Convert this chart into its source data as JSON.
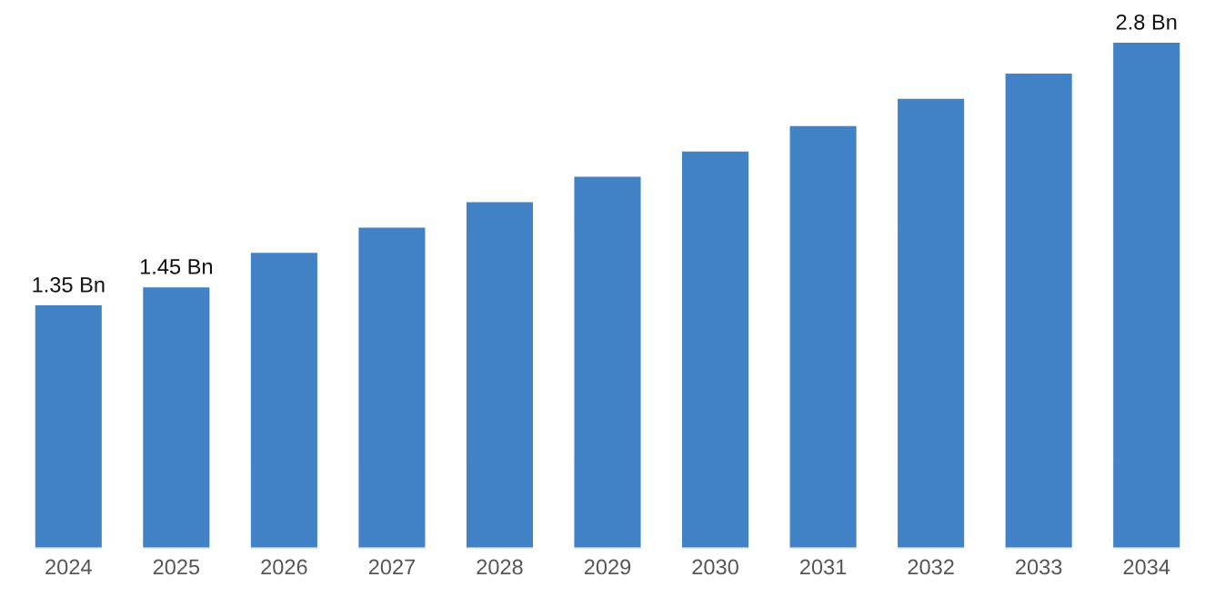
{
  "chart_data": {
    "type": "bar",
    "categories": [
      "2024",
      "2025",
      "2026",
      "2027",
      "2028",
      "2029",
      "2030",
      "2031",
      "2032",
      "2033",
      "2034"
    ],
    "values": [
      1.35,
      1.45,
      1.64,
      1.78,
      1.92,
      2.06,
      2.2,
      2.34,
      2.49,
      2.63,
      2.8
    ],
    "value_labels": [
      "1.35 Bn",
      "1.45 Bn",
      null,
      null,
      null,
      null,
      null,
      null,
      null,
      null,
      "2.8 Bn"
    ],
    "color": "#4282c6",
    "tick_labels": "x",
    "grid": false,
    "legend": false
  }
}
